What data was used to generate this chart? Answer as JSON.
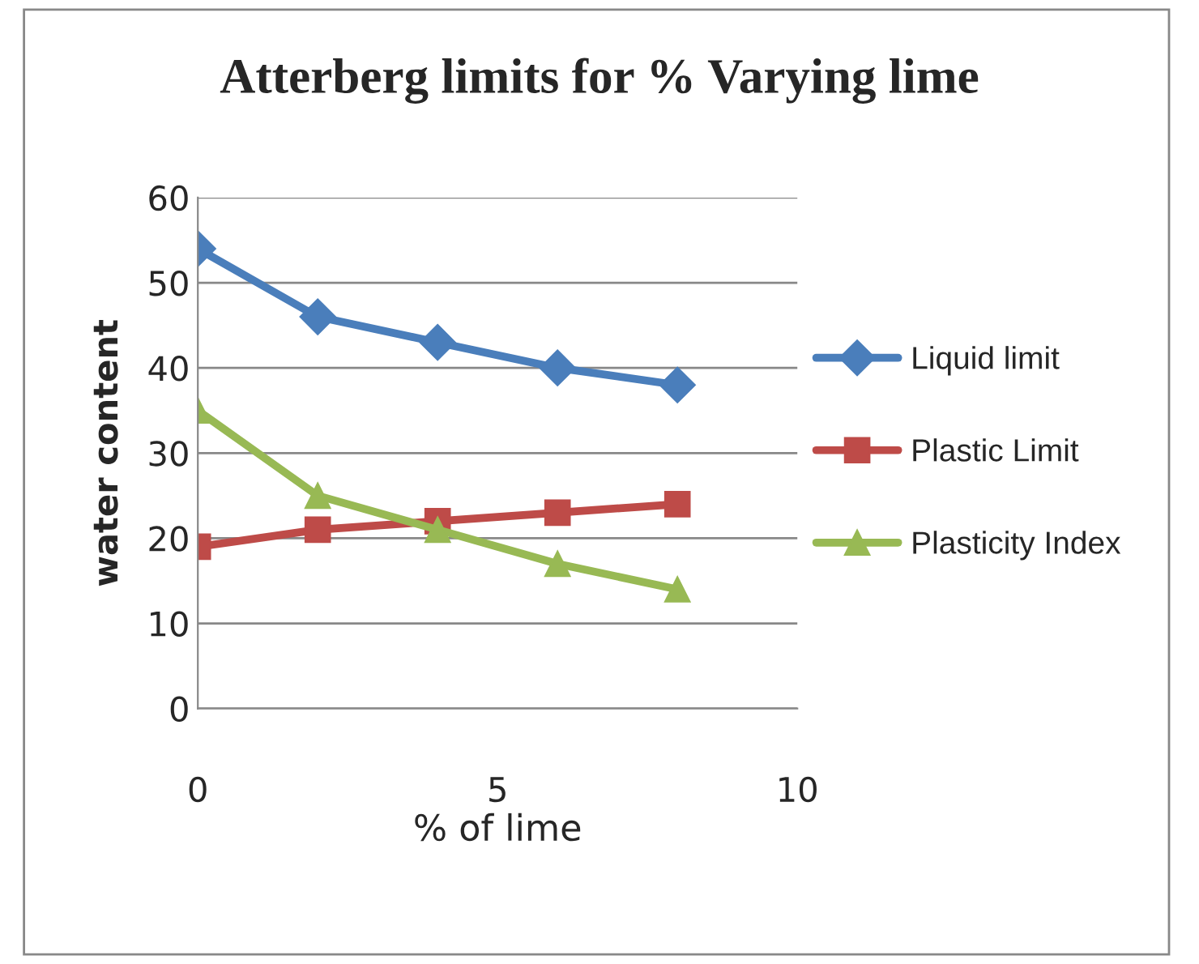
{
  "chart_data": {
    "type": "line",
    "title": "Atterberg limits for % Varying lime",
    "xlabel": "% of lime",
    "ylabel": "water content",
    "x": [
      0,
      2,
      4,
      6,
      8
    ],
    "series": [
      {
        "name": "Liquid limit",
        "color": "#4a7ebb",
        "marker": "diamond",
        "values": [
          54,
          46,
          43,
          40,
          38
        ]
      },
      {
        "name": "Plastic Limit",
        "color": "#be4b48",
        "marker": "square",
        "values": [
          19,
          21,
          22,
          23,
          24
        ]
      },
      {
        "name": "Plasticity Index",
        "color": "#98b954",
        "marker": "triangle",
        "values": [
          35,
          25,
          21,
          17,
          14
        ]
      }
    ],
    "xlim": [
      0,
      10
    ],
    "xticks": [
      0,
      5,
      10
    ],
    "ylim": [
      0,
      60
    ],
    "yticks": [
      0,
      10,
      20,
      30,
      40,
      50,
      60
    ],
    "grid": "y",
    "legend": "right",
    "line_style": "solid"
  }
}
